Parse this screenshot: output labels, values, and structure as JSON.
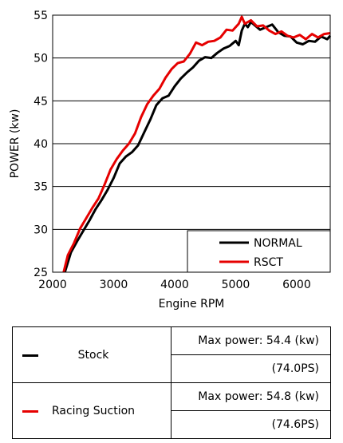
{
  "chart_data": {
    "type": "line",
    "title": "",
    "xlabel": "Engine RPM",
    "ylabel": "POWER (kw)",
    "xlim": [
      2000,
      6550
    ],
    "ylim": [
      25,
      55
    ],
    "xticks": [
      2000,
      3000,
      4000,
      5000,
      6000
    ],
    "yticks": [
      25,
      30,
      35,
      40,
      45,
      50,
      55
    ],
    "grid": "horizontal",
    "legend_position": "bottom-right",
    "series": [
      {
        "name": "NORMAL",
        "color": "#000000",
        "points": [
          [
            2200,
            25.0
          ],
          [
            2300,
            27.3
          ],
          [
            2400,
            28.6
          ],
          [
            2500,
            29.8
          ],
          [
            2600,
            31.0
          ],
          [
            2700,
            32.3
          ],
          [
            2800,
            33.4
          ],
          [
            2900,
            34.6
          ],
          [
            3000,
            36.0
          ],
          [
            3100,
            37.7
          ],
          [
            3200,
            38.5
          ],
          [
            3300,
            39.0
          ],
          [
            3400,
            39.8
          ],
          [
            3500,
            41.3
          ],
          [
            3600,
            42.8
          ],
          [
            3700,
            44.5
          ],
          [
            3800,
            45.3
          ],
          [
            3900,
            45.6
          ],
          [
            4000,
            46.7
          ],
          [
            4100,
            47.6
          ],
          [
            4200,
            48.3
          ],
          [
            4300,
            48.9
          ],
          [
            4400,
            49.7
          ],
          [
            4500,
            50.1
          ],
          [
            4600,
            50.0
          ],
          [
            4700,
            50.6
          ],
          [
            4800,
            51.1
          ],
          [
            4900,
            51.4
          ],
          [
            5000,
            52.0
          ],
          [
            5050,
            51.5
          ],
          [
            5100,
            53.2
          ],
          [
            5150,
            54.0
          ],
          [
            5200,
            53.6
          ],
          [
            5250,
            54.2
          ],
          [
            5300,
            53.9
          ],
          [
            5400,
            53.3
          ],
          [
            5500,
            53.6
          ],
          [
            5600,
            53.9
          ],
          [
            5700,
            53.0
          ],
          [
            5800,
            52.6
          ],
          [
            5900,
            52.5
          ],
          [
            6000,
            51.8
          ],
          [
            6100,
            51.6
          ],
          [
            6200,
            52.0
          ],
          [
            6300,
            51.9
          ],
          [
            6400,
            52.5
          ],
          [
            6500,
            52.2
          ],
          [
            6550,
            52.6
          ]
        ]
      },
      {
        "name": "RSCT",
        "color": "#e60000",
        "points": [
          [
            2180,
            25.0
          ],
          [
            2250,
            27.0
          ],
          [
            2350,
            28.4
          ],
          [
            2450,
            30.1
          ],
          [
            2550,
            31.3
          ],
          [
            2650,
            32.5
          ],
          [
            2750,
            33.6
          ],
          [
            2850,
            35.2
          ],
          [
            2950,
            37.0
          ],
          [
            3050,
            38.2
          ],
          [
            3150,
            39.2
          ],
          [
            3250,
            40.0
          ],
          [
            3350,
            41.2
          ],
          [
            3450,
            43.1
          ],
          [
            3550,
            44.6
          ],
          [
            3650,
            45.6
          ],
          [
            3750,
            46.4
          ],
          [
            3850,
            47.7
          ],
          [
            3950,
            48.7
          ],
          [
            4050,
            49.4
          ],
          [
            4150,
            49.6
          ],
          [
            4250,
            50.5
          ],
          [
            4350,
            51.8
          ],
          [
            4450,
            51.5
          ],
          [
            4550,
            51.9
          ],
          [
            4650,
            52.0
          ],
          [
            4750,
            52.4
          ],
          [
            4850,
            53.3
          ],
          [
            4950,
            53.2
          ],
          [
            5050,
            54.0
          ],
          [
            5100,
            54.8
          ],
          [
            5150,
            54.0
          ],
          [
            5250,
            54.4
          ],
          [
            5350,
            53.7
          ],
          [
            5450,
            53.8
          ],
          [
            5550,
            53.2
          ],
          [
            5650,
            52.8
          ],
          [
            5750,
            53.1
          ],
          [
            5850,
            52.6
          ],
          [
            5950,
            52.4
          ],
          [
            6050,
            52.7
          ],
          [
            6150,
            52.2
          ],
          [
            6250,
            52.8
          ],
          [
            6350,
            52.4
          ],
          [
            6450,
            52.8
          ],
          [
            6550,
            52.9
          ]
        ]
      }
    ]
  },
  "summary": {
    "rows": [
      {
        "name": "Stock",
        "color": "#000000",
        "max_power": "Max power: 54.4 (kw)",
        "ps": "(74.0PS)"
      },
      {
        "name": "Racing Suction",
        "color": "#e60000",
        "max_power": "Max power: 54.8 (kw)",
        "ps": "(74.6PS)"
      }
    ]
  }
}
